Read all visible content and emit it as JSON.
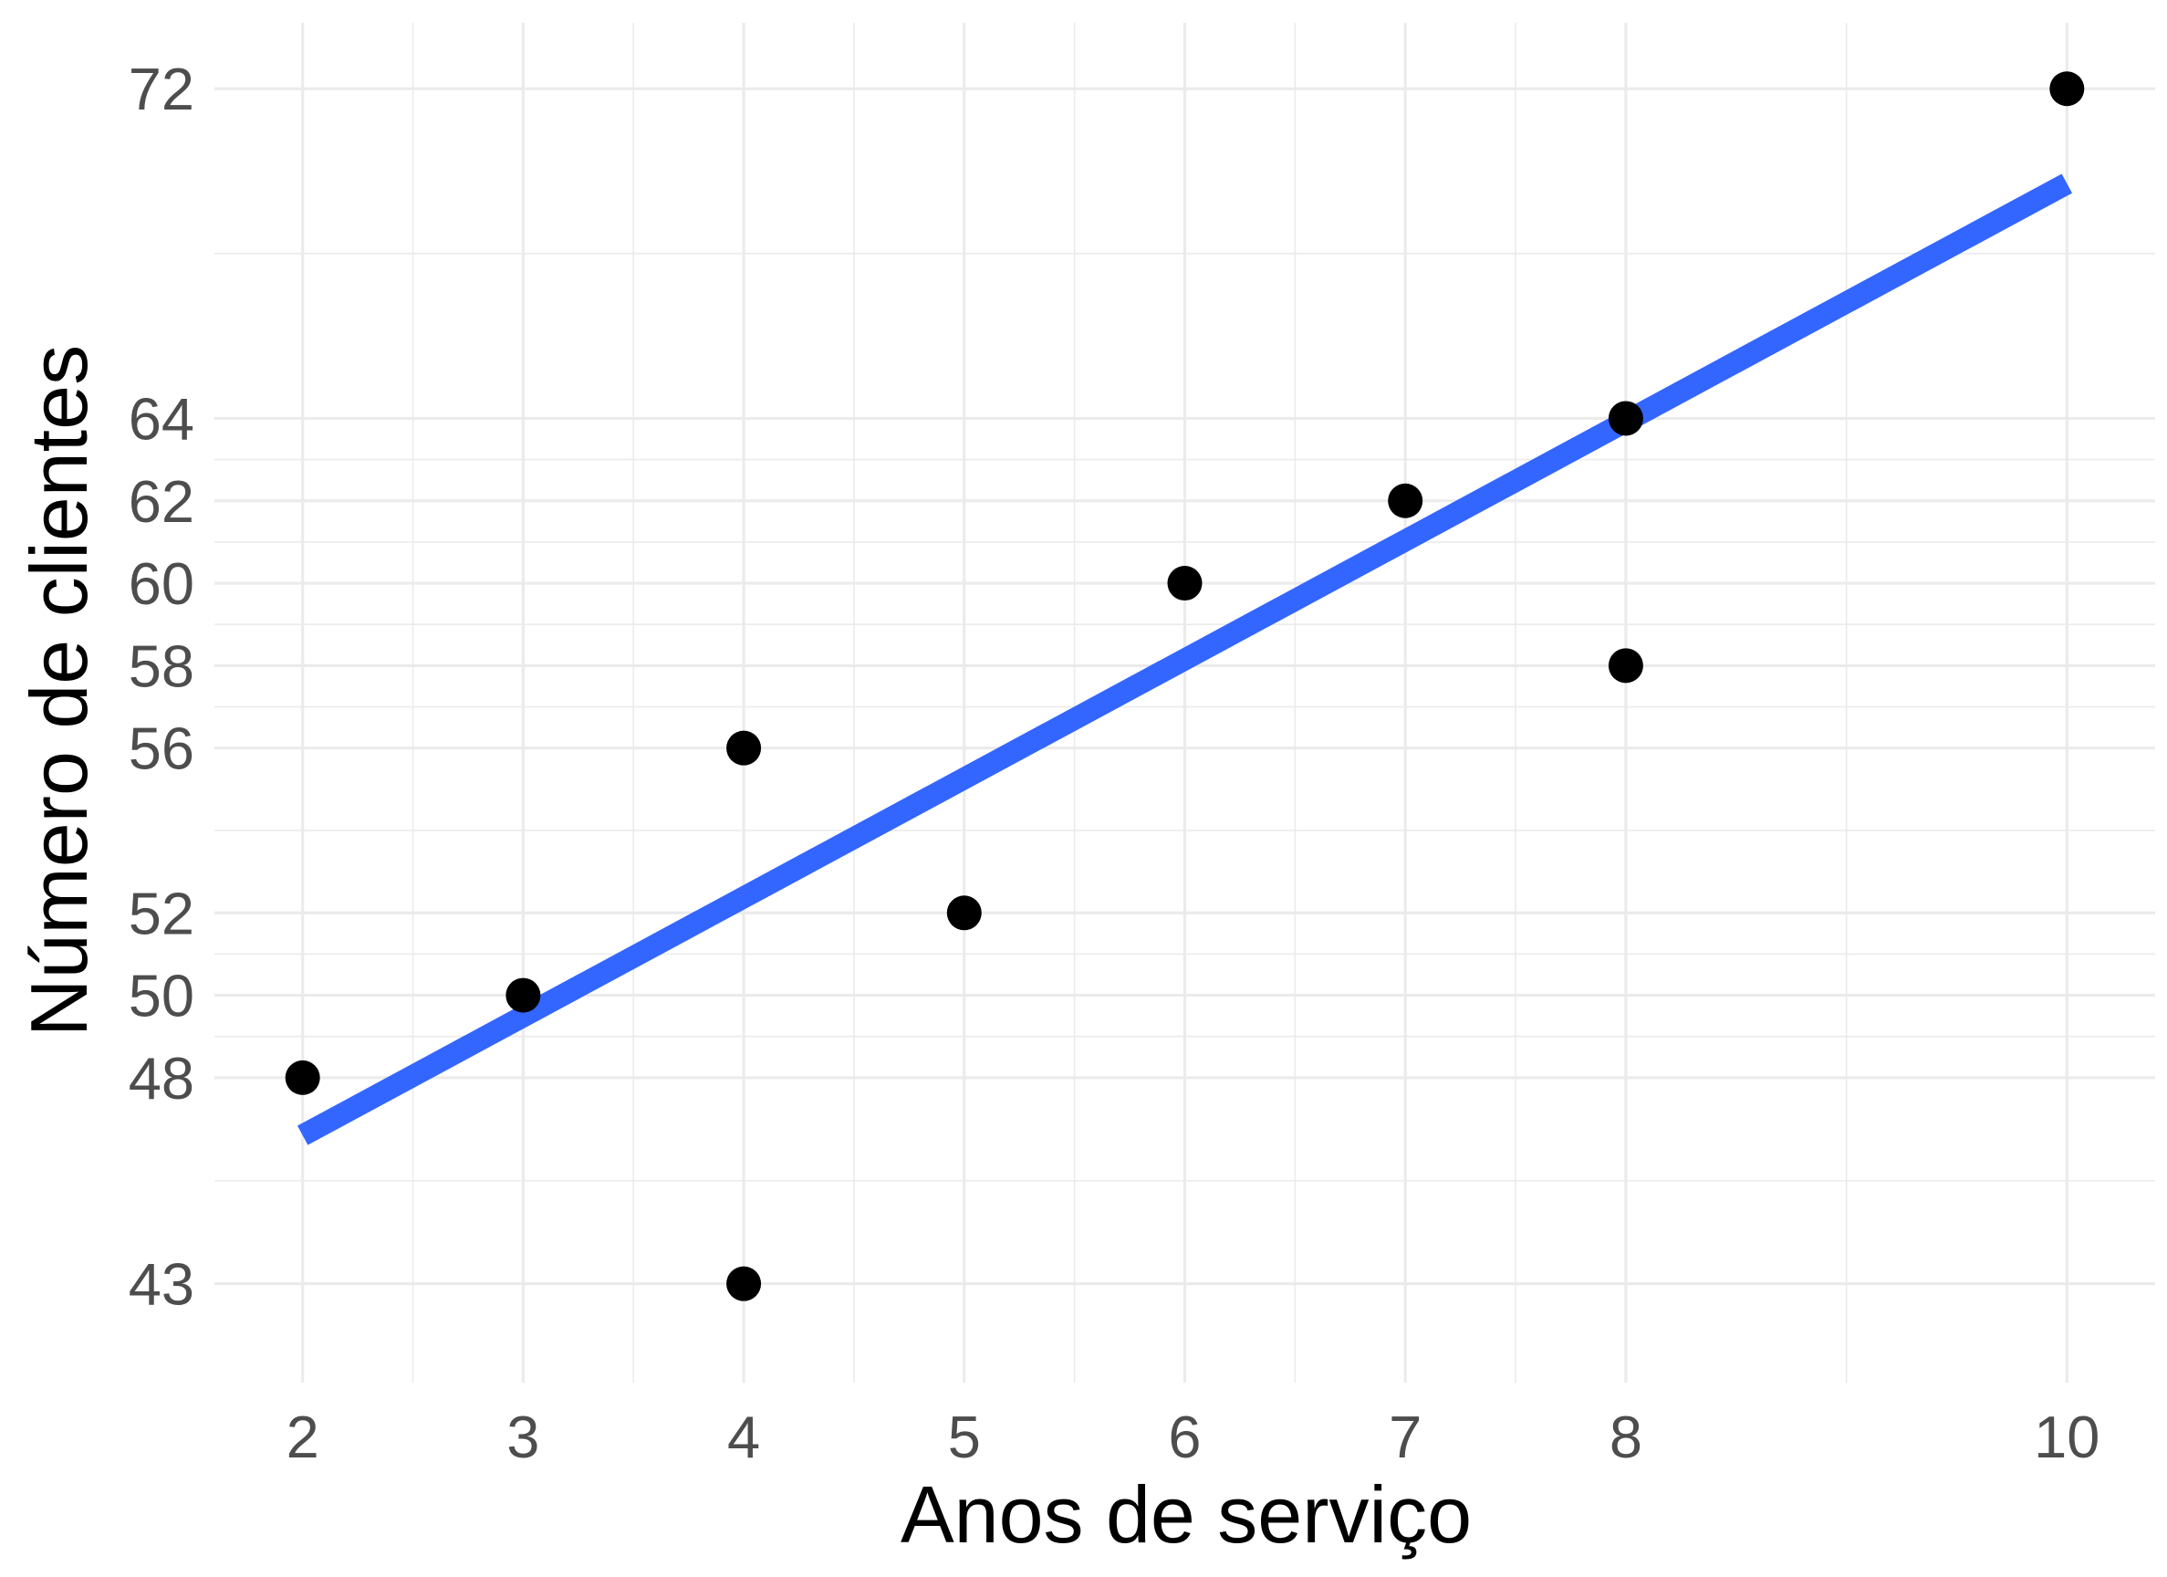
{
  "chart_data": {
    "type": "scatter",
    "title": "",
    "xlabel": "Anos de serviço",
    "ylabel": "Número de clientes",
    "xlim": [
      1.6,
      10.4
    ],
    "ylim": [
      40.6,
      73.6
    ],
    "x_ticks": [
      2,
      3,
      4,
      5,
      6,
      7,
      8,
      10
    ],
    "y_ticks": [
      43,
      48,
      50,
      52,
      56,
      58,
      60,
      62,
      64,
      72
    ],
    "x_tick_labels": [
      "2",
      "3",
      "4",
      "5",
      "6",
      "7",
      "8",
      "10"
    ],
    "y_tick_labels": [
      "43",
      "48",
      "50",
      "52",
      "56",
      "58",
      "60",
      "62",
      "64",
      "72"
    ],
    "grid": true,
    "legend": "none",
    "points": [
      {
        "x": 2,
        "y": 48
      },
      {
        "x": 3,
        "y": 50
      },
      {
        "x": 4,
        "y": 56
      },
      {
        "x": 4,
        "y": 43
      },
      {
        "x": 5,
        "y": 52
      },
      {
        "x": 6,
        "y": 60
      },
      {
        "x": 7,
        "y": 62
      },
      {
        "x": 8,
        "y": 64
      },
      {
        "x": 8,
        "y": 58
      },
      {
        "x": 10,
        "y": 72
      }
    ],
    "fit_line": {
      "type": "linear",
      "x": [
        2,
        10
      ],
      "y": [
        46.6,
        69.7
      ],
      "color": "#3366ff"
    },
    "point_color": "#000000",
    "grid_color": "#ebebeb",
    "tick_label_color": "#4d4d4d"
  }
}
